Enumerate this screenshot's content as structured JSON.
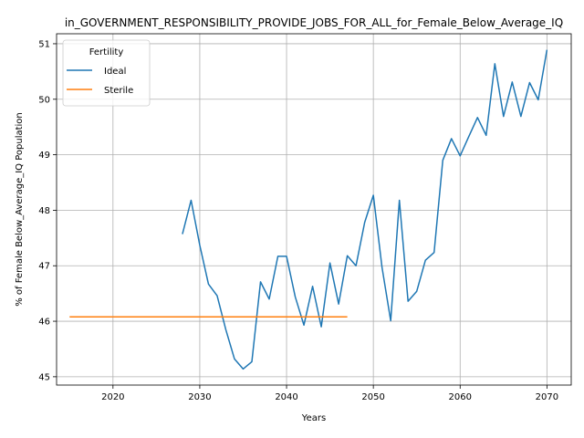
{
  "chart_data": {
    "type": "line",
    "title": "in_GOVERNMENT_RESPONSIBILITY_PROVIDE_JOBS_FOR_ALL_for_Female_Below_Average_IQ",
    "xlabel": "Years",
    "ylabel": "% of Female Below_Average_IQ Population",
    "xlim": [
      2013.5,
      2072.8
    ],
    "ylim": [
      44.85,
      51.18
    ],
    "xticks": [
      2020,
      2030,
      2040,
      2050,
      2060,
      2070
    ],
    "yticks": [
      45,
      46,
      47,
      48,
      49,
      50,
      51
    ],
    "grid": true,
    "legend": {
      "title": "Fertility",
      "placement": "top-left"
    },
    "series": [
      {
        "name": "Ideal",
        "color": "#1f77b4",
        "x": [
          2028,
          2029,
          2030,
          2031,
          2032,
          2033,
          2034,
          2035,
          2036,
          2037,
          2038,
          2039,
          2040,
          2041,
          2042,
          2043,
          2044,
          2045,
          2046,
          2047,
          2048,
          2049,
          2050,
          2051,
          2052,
          2053,
          2054,
          2055,
          2056,
          2057,
          2058,
          2059,
          2060,
          2061,
          2062,
          2063,
          2064,
          2065,
          2066,
          2067,
          2068,
          2069,
          2070
        ],
        "y": [
          47.57,
          48.18,
          47.37,
          46.67,
          46.46,
          45.85,
          45.32,
          45.14,
          45.27,
          46.71,
          46.4,
          47.17,
          47.17,
          46.44,
          45.93,
          46.63,
          45.9,
          47.05,
          46.31,
          47.18,
          47.0,
          47.78,
          48.27,
          46.97,
          46.01,
          48.18,
          46.36,
          46.54,
          47.1,
          47.24,
          48.9,
          49.29,
          48.98,
          49.33,
          49.67,
          49.35,
          50.64,
          49.69,
          50.31,
          49.69,
          50.3,
          49.99,
          50.89
        ]
      },
      {
        "name": "Sterile",
        "color": "#ff7f0e",
        "x": [
          2015,
          2047
        ],
        "y": [
          46.08,
          46.08
        ]
      }
    ]
  }
}
